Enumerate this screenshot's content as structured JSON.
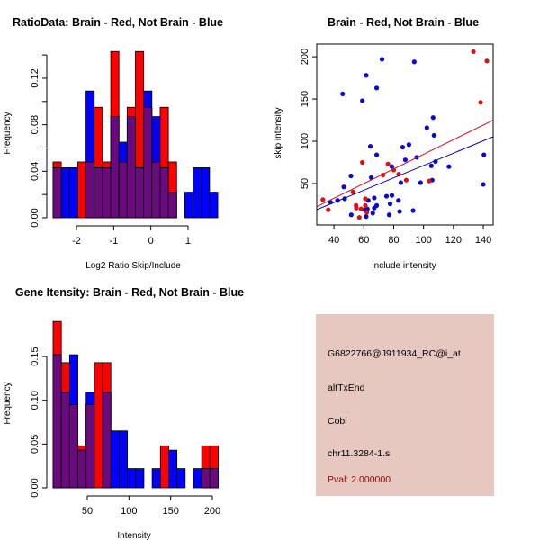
{
  "colors": {
    "brain": "#ff0000",
    "not_brain": "#0000ff",
    "overlap": "#6a0a7e",
    "panel_bg": "#e6c8c1",
    "pval_text": "#990000",
    "red_line": "#cc1020",
    "blue_line": "#0000aa"
  },
  "chart_data": [
    {
      "type": "bar",
      "title": "RatioData: Brain - Red, Not Brain - Blue",
      "xlabel": "Log2 Ratio Skip/Include",
      "ylabel": "Frequency",
      "x_start": -2.63,
      "bin_width": 0.2215,
      "xticks": [
        -2,
        -1,
        0,
        1
      ],
      "yticks": [
        0,
        0.02,
        0.04,
        0.06,
        0.08,
        0.1,
        0.12,
        0.14
      ],
      "ytick_labels": [
        "0.00",
        "",
        "0.04",
        "",
        "0.08",
        "",
        "0.12",
        ""
      ],
      "series": [
        {
          "name": "Brain",
          "color": "red",
          "values": [
            0.048,
            0,
            0,
            0.048,
            0.048,
            0.095,
            0.048,
            0.143,
            0.048,
            0.095,
            0.143,
            0.095,
            0.048,
            0.095,
            0.048,
            0,
            0,
            0,
            0,
            0
          ]
        },
        {
          "name": "Not Brain",
          "color": "blue",
          "values": [
            0.043,
            0.043,
            0.043,
            0,
            0.109,
            0.043,
            0.043,
            0.087,
            0.065,
            0.087,
            0.043,
            0.109,
            0.087,
            0.043,
            0.022,
            0,
            0.022,
            0.043,
            0.043,
            0.022
          ]
        }
      ]
    },
    {
      "type": "scatter",
      "title": "Brain - Red, Not Brain - Blue",
      "xlabel": "include intensity",
      "ylabel": "skip intensity",
      "xlim": [
        28.5,
        146.6
      ],
      "ylim": [
        1,
        215
      ],
      "xticks": [
        40,
        60,
        80,
        100,
        120,
        140
      ],
      "yticks": [
        50,
        100,
        150,
        200
      ],
      "series": [
        {
          "name": "Not Brain",
          "color": "blue",
          "points": [
            [
              45.8,
              156
            ],
            [
              59,
              148
            ],
            [
              61.6,
              178
            ],
            [
              68.6,
              163
            ],
            [
              72.2,
              197
            ],
            [
              93.8,
              194
            ],
            [
              106.4,
              128
            ],
            [
              102.2,
              116
            ],
            [
              107,
              107
            ],
            [
              64.4,
              94
            ],
            [
              68.6,
              84
            ],
            [
              86,
              93
            ],
            [
              90.2,
              96
            ],
            [
              95.4,
              81
            ],
            [
              87.8,
              78
            ],
            [
              51.4,
              59
            ],
            [
              65,
              57
            ],
            [
              46.6,
              46
            ],
            [
              47.2,
              32
            ],
            [
              42.4,
              30
            ],
            [
              37.6,
              28
            ],
            [
              51.6,
              13
            ],
            [
              60.6,
              19
            ],
            [
              63,
              30
            ],
            [
              62.4,
              20
            ],
            [
              67,
              33
            ],
            [
              67,
              21
            ],
            [
              68.6,
              24
            ],
            [
              66,
              15
            ],
            [
              61.6,
              11
            ],
            [
              75.2,
              35
            ],
            [
              77.6,
              26
            ],
            [
              77,
              13
            ],
            [
              78.8,
              36
            ],
            [
              78.8,
              70
            ],
            [
              83.2,
              30
            ],
            [
              84,
              17
            ],
            [
              84.8,
              51
            ],
            [
              93,
              18
            ],
            [
              98,
              51
            ],
            [
              105.2,
              71
            ],
            [
              108,
              76
            ],
            [
              105.8,
              54
            ],
            [
              117,
              70
            ],
            [
              140.4,
              84
            ],
            [
              140,
              49
            ]
          ],
          "fit": {
            "intercept": -1.7,
            "slope": 0.73
          }
        },
        {
          "name": "Brain",
          "color": "red",
          "points": [
            [
              32.6,
              31
            ],
            [
              36.2,
              19
            ],
            [
              52.8,
              40
            ],
            [
              54.8,
              24
            ],
            [
              55,
              21
            ],
            [
              57,
              10
            ],
            [
              58.2,
              20
            ],
            [
              61,
              32
            ],
            [
              61,
              24
            ],
            [
              62,
              16
            ],
            [
              59,
              75
            ],
            [
              72.8,
              60
            ],
            [
              76.2,
              73
            ],
            [
              80,
              66
            ],
            [
              83.4,
              61
            ],
            [
              88.4,
              54
            ],
            [
              103.8,
              53
            ],
            [
              133.4,
              206
            ],
            [
              138.2,
              146
            ],
            [
              142.4,
              195
            ]
          ],
          "fit": {
            "intercept": -2.1,
            "slope": 0.867
          }
        }
      ]
    },
    {
      "type": "bar",
      "title": "Gene Itensity: Brain - Red, Not Brain - Blue",
      "xlabel": "Intensity",
      "ylabel": "Frequency",
      "x_start": 9,
      "bin_width": 9.9,
      "xticks": [
        50,
        100,
        150,
        200
      ],
      "yticks": [
        0,
        0.05,
        0.1,
        0.15
      ],
      "ytick_labels": [
        "0.00",
        "0.05",
        "0.10",
        "0.15"
      ],
      "series": [
        {
          "name": "Brain",
          "color": "red",
          "values": [
            0.19,
            0.143,
            0.095,
            0.048,
            0.095,
            0.143,
            0.143,
            0,
            0,
            0,
            0,
            0,
            0,
            0.048,
            0,
            0,
            0,
            0,
            0.048,
            0.048
          ]
        },
        {
          "name": "Not Brain",
          "color": "blue",
          "values": [
            0.152,
            0.109,
            0.152,
            0.043,
            0.109,
            0,
            0.109,
            0.065,
            0.065,
            0.022,
            0.022,
            0,
            0.022,
            0,
            0.043,
            0.022,
            0,
            0.022,
            0.022,
            0.022
          ]
        }
      ]
    }
  ],
  "info_panel": {
    "probe_id": "G6822766@J911934_RC@i_at",
    "event_type": "altTxEnd",
    "gene": "Cobl",
    "locus": "chr11.3284-1.s",
    "pval": "Pval: 2.000000"
  }
}
